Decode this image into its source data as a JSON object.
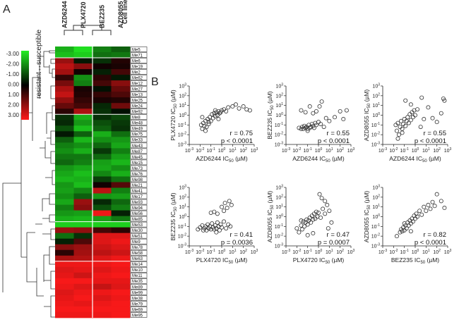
{
  "panel_a": {
    "label": "A",
    "drugs": [
      "AZD6244",
      "PLX4720",
      "BEZ235",
      "AZD8055"
    ],
    "cell_line_header": "Cell line",
    "cell_lines": [
      "Me5",
      "Me71",
      "Me6",
      "Me19",
      "Me2",
      "Me62",
      "Me12",
      "Me27",
      "Me13",
      "Me25",
      "Me24",
      "Me92",
      "Me8",
      "Me48",
      "Me49",
      "Me75",
      "Me33",
      "Me43",
      "Me87",
      "Me45",
      "Me15",
      "Me73",
      "Me76",
      "Me98",
      "Me21",
      "Me41",
      "Me17",
      "Me93",
      "Me94",
      "Me56",
      "Me85",
      "Me53",
      "Me30",
      "Me51",
      "Me9",
      "Me78",
      "Me58",
      "Me63",
      "Me14",
      "Me10",
      "Me11",
      "Me35",
      "Me89",
      "Me99",
      "Me38",
      "Me79",
      "Me69",
      "Me95"
    ],
    "legend_ticks": [
      "-3.00",
      "-2.00",
      "-1.00",
      "0.00",
      "1.00",
      "2.00",
      "3.00"
    ],
    "legend_label_resistant": "resistant",
    "legend_label_susceptible": "susceptible",
    "legend_arrow": "↔"
  },
  "panel_b": {
    "label": "B"
  },
  "chart_data": [
    {
      "type": "heatmap",
      "title": "A",
      "columns": [
        "AZD6244",
        "PLX4720",
        "BEZ235",
        "AZD8055"
      ],
      "rows": [
        "Me5",
        "Me71",
        "Me6",
        "Me19",
        "Me2",
        "Me62",
        "Me12",
        "Me27",
        "Me13",
        "Me25",
        "Me24",
        "Me92",
        "Me8",
        "Me48",
        "Me49",
        "Me75",
        "Me33",
        "Me43",
        "Me87",
        "Me45",
        "Me15",
        "Me73",
        "Me76",
        "Me98",
        "Me21",
        "Me41",
        "Me17",
        "Me93",
        "Me94",
        "Me56",
        "Me85",
        "Me53",
        "Me30",
        "Me51",
        "Me9",
        "Me78",
        "Me58",
        "Me63",
        "Me14",
        "Me10",
        "Me11",
        "Me35",
        "Me89",
        "Me99",
        "Me38",
        "Me79",
        "Me69",
        "Me95"
      ],
      "scale": [
        -3,
        3
      ],
      "colors": {
        "low": "#22ee22",
        "mid": "#000000",
        "high": "#ff1a1a"
      },
      "values": [
        [
          -2.2,
          -2.8,
          -1.6,
          -1.2
        ],
        [
          -2.4,
          -2.6,
          -1.4,
          -1.5
        ],
        [
          1.8,
          -0.3,
          -0.6,
          0.4
        ],
        [
          2.2,
          1.6,
          0.2,
          0.3
        ],
        [
          1.9,
          0.2,
          -0.4,
          0.8
        ],
        [
          0.6,
          -1.8,
          0.5,
          -0.3
        ],
        [
          1.4,
          -1.6,
          0.8,
          1.6
        ],
        [
          2.0,
          0.3,
          -0.2,
          1.2
        ],
        [
          2.3,
          0.4,
          0.6,
          0.9
        ],
        [
          1.7,
          0.6,
          0.3,
          0.4
        ],
        [
          1.2,
          0.8,
          -0.5,
          1.3
        ],
        [
          0.5,
          2.0,
          -0.6,
          -0.2
        ],
        [
          -0.6,
          -2.2,
          -0.6,
          -0.9
        ],
        [
          -0.5,
          -1.9,
          -1.0,
          -0.7
        ],
        [
          -1.0,
          -2.4,
          -1.2,
          -0.6
        ],
        [
          -0.3,
          -1.2,
          -2.2,
          -1.4
        ],
        [
          -1.2,
          -2.3,
          -1.8,
          -1.9
        ],
        [
          -1.6,
          -1.8,
          -1.3,
          -2.1
        ],
        [
          -1.8,
          -2.2,
          -0.7,
          -1.6
        ],
        [
          -1.5,
          -1.5,
          -1.3,
          -2.0
        ],
        [
          -1.3,
          -1.6,
          -2.0,
          -2.3
        ],
        [
          -1.9,
          -2.1,
          -2.1,
          -1.8
        ],
        [
          -2.1,
          -2.4,
          -1.7,
          -2.2
        ],
        [
          -2.3,
          -2.2,
          -0.8,
          -1.4
        ],
        [
          -1.9,
          -2.4,
          0.2,
          1.0
        ],
        [
          -2.0,
          -1.7,
          2.2,
          -1.6
        ],
        [
          -1.8,
          -1.2,
          -1.9,
          -2.0
        ],
        [
          -2.1,
          1.8,
          -0.5,
          -1.3
        ],
        [
          -1.6,
          1.6,
          -1.0,
          -1.6
        ],
        [
          -1.9,
          -2.0,
          2.8,
          -0.4
        ],
        [
          -2.2,
          -2.3,
          -2.0,
          -1.5
        ],
        [
          -2.6,
          -2.6,
          -2.6,
          -2.6
        ],
        [
          1.8,
          1.7,
          0.8,
          0.5
        ],
        [
          -1.4,
          -0.6,
          2.6,
          2.6
        ],
        [
          -0.4,
          0.9,
          2.6,
          2.8
        ],
        [
          1.6,
          1.8,
          2.4,
          2.6
        ],
        [
          0.5,
          1.9,
          2.2,
          2.4
        ],
        [
          2.0,
          2.1,
          2.6,
          2.8
        ],
        [
          2.8,
          2.8,
          2.8,
          2.9
        ],
        [
          2.6,
          2.7,
          2.6,
          2.8
        ],
        [
          2.7,
          2.4,
          2.8,
          2.9
        ],
        [
          2.9,
          2.9,
          2.7,
          2.7
        ],
        [
          2.8,
          2.6,
          2.3,
          2.6
        ],
        [
          2.6,
          2.8,
          2.8,
          2.9
        ],
        [
          2.7,
          2.9,
          2.6,
          2.8
        ],
        [
          2.8,
          2.7,
          2.8,
          2.9
        ],
        [
          2.9,
          2.9,
          2.9,
          2.9
        ],
        [
          2.8,
          2.8,
          2.8,
          2.9
        ]
      ]
    },
    {
      "type": "scatter",
      "xlabel": "AZD6244 IC50 (µM)",
      "ylabel": "PLX4720 IC50 (µM)",
      "r": "r = 0.75",
      "p": "p < 0.0001",
      "x_ticks": [
        "10-3",
        "10-2",
        "10-1",
        "100",
        "101",
        "102",
        "103"
      ],
      "y_ticks": [
        "10-3",
        "10-2",
        "10-1",
        "100",
        "101",
        "102",
        "103"
      ],
      "xlim_log10": [
        -3,
        3
      ],
      "ylim_log10": [
        -3,
        3
      ],
      "points": [
        [
          -1.9,
          -1.0
        ],
        [
          -1.8,
          -1.4
        ],
        [
          -1.7,
          -0.8
        ],
        [
          -1.6,
          -1.1
        ],
        [
          -1.5,
          -0.6
        ],
        [
          -1.4,
          -1.2
        ],
        [
          -1.3,
          -0.4
        ],
        [
          -1.2,
          -0.9
        ],
        [
          -1.1,
          -0.2
        ],
        [
          -1.0,
          -0.6
        ],
        [
          -0.9,
          0.1
        ],
        [
          -0.8,
          -0.3
        ],
        [
          -0.7,
          0.2
        ],
        [
          -0.6,
          -0.1
        ],
        [
          -0.5,
          0.3
        ],
        [
          -0.4,
          0.0
        ],
        [
          -0.3,
          0.4
        ],
        [
          -0.2,
          0.2
        ],
        [
          -0.1,
          0.3
        ],
        [
          0.0,
          0.5
        ],
        [
          0.2,
          0.6
        ],
        [
          0.4,
          0.4
        ],
        [
          0.6,
          0.8
        ],
        [
          1.0,
          0.9
        ],
        [
          1.3,
          1.1
        ],
        [
          1.6,
          0.7
        ],
        [
          2.0,
          0.9
        ],
        [
          2.3,
          0.6
        ],
        [
          2.6,
          0.5
        ],
        [
          -1.5,
          -1.6
        ],
        [
          -1.2,
          -0.7
        ],
        [
          -1.8,
          -0.2
        ],
        [
          -0.6,
          0.5
        ],
        [
          -0.3,
          -0.4
        ]
      ]
    },
    {
      "type": "scatter",
      "xlabel": "AZD6244 IC50 (µM)",
      "ylabel": "BEZ235 IC50 (µM)",
      "r": "r = 0.55",
      "p": "p < 0.0001",
      "x_ticks": [
        "10-3",
        "10-2",
        "10-1",
        "100",
        "101",
        "102",
        "103"
      ],
      "y_ticks": [
        "10-3",
        "10-2",
        "10-1",
        "100",
        "101",
        "102",
        "103"
      ],
      "xlim_log10": [
        -3,
        3
      ],
      "ylim_log10": [
        -3,
        3
      ],
      "points": [
        [
          -1.8,
          -1.3
        ],
        [
          -1.6,
          -1.4
        ],
        [
          -1.5,
          -1.2
        ],
        [
          -1.4,
          -1.4
        ],
        [
          -1.3,
          -1.1
        ],
        [
          -1.2,
          -1.3
        ],
        [
          -1.1,
          -1.2
        ],
        [
          -1.0,
          -1.4
        ],
        [
          -0.9,
          -1.0
        ],
        [
          -0.8,
          -1.3
        ],
        [
          -0.7,
          -1.2
        ],
        [
          -0.6,
          -0.9
        ],
        [
          -0.5,
          -1.1
        ],
        [
          -0.4,
          -1.3
        ],
        [
          -0.3,
          -0.8
        ],
        [
          -0.2,
          -1.0
        ],
        [
          0.0,
          -0.7
        ],
        [
          0.2,
          -0.9
        ],
        [
          0.5,
          -1.2
        ],
        [
          0.7,
          -0.3
        ],
        [
          -1.6,
          0.5
        ],
        [
          -1.2,
          0.3
        ],
        [
          -0.8,
          0.9
        ],
        [
          -0.5,
          0.2
        ],
        [
          0.1,
          0.9
        ],
        [
          0.3,
          1.4
        ],
        [
          1.0,
          -0.6
        ],
        [
          1.5,
          -0.2
        ],
        [
          2.0,
          0.4
        ],
        [
          2.3,
          -0.4
        ],
        [
          2.6,
          0.5
        ],
        [
          -1.0,
          -1.6
        ],
        [
          -0.2,
          0.4
        ]
      ]
    },
    {
      "type": "scatter",
      "xlabel": "AZD6244 IC50 (µM)",
      "ylabel": "AZD8055 IC50 (µM)",
      "r": "r = 0.55",
      "p": "p < 0.0001",
      "x_ticks": [
        "10-3",
        "10-2",
        "10-1",
        "100",
        "101",
        "102",
        "103"
      ],
      "y_ticks": [
        "10-3",
        "10-2",
        "10-1",
        "100",
        "101",
        "102",
        "103"
      ],
      "xlim_log10": [
        -3,
        3
      ],
      "ylim_log10": [
        -3,
        3
      ],
      "points": [
        [
          -1.8,
          -1.0
        ],
        [
          -1.7,
          -1.6
        ],
        [
          -1.6,
          -0.8
        ],
        [
          -1.5,
          -2.0
        ],
        [
          -1.4,
          -1.2
        ],
        [
          -1.3,
          -0.6
        ],
        [
          -1.2,
          -1.4
        ],
        [
          -1.1,
          -0.9
        ],
        [
          -1.0,
          -0.4
        ],
        [
          -0.9,
          -1.1
        ],
        [
          -0.8,
          -0.6
        ],
        [
          -0.7,
          -0.2
        ],
        [
          -0.6,
          -0.8
        ],
        [
          -0.5,
          0.1
        ],
        [
          -0.4,
          -0.5
        ],
        [
          -0.3,
          0.3
        ],
        [
          -0.2,
          -0.2
        ],
        [
          -0.1,
          0.5
        ],
        [
          0.0,
          0.0
        ],
        [
          0.2,
          0.6
        ],
        [
          0.5,
          -1.2
        ],
        [
          0.8,
          -0.4
        ],
        [
          1.2,
          0.8
        ],
        [
          1.6,
          -0.3
        ],
        [
          2.0,
          -0.7
        ],
        [
          2.4,
          0.2
        ],
        [
          2.6,
          1.7
        ],
        [
          2.7,
          1.5
        ],
        [
          -0.4,
          1.1
        ],
        [
          -0.9,
          1.5
        ],
        [
          0.6,
          1.8
        ],
        [
          -1.6,
          -2.4
        ],
        [
          -1.2,
          -1.8
        ]
      ]
    },
    {
      "type": "scatter",
      "xlabel": "PLX4720 IC50 (µM)",
      "ylabel": "BEZ235 IC50 (µM)",
      "r": "r = 0.41",
      "p": "p = 0.0036",
      "x_ticks": [
        "10-3",
        "10-2",
        "10-1",
        "100",
        "101",
        "102",
        "103"
      ],
      "y_ticks": [
        "10-3",
        "10-2",
        "10-1",
        "100",
        "101",
        "102",
        "103"
      ],
      "xlim_log10": [
        -3,
        3
      ],
      "ylim_log10": [
        -3,
        3
      ],
      "points": [
        [
          -2.2,
          -1.3
        ],
        [
          -2.0,
          -1.1
        ],
        [
          -1.8,
          -0.9
        ],
        [
          -1.7,
          -1.4
        ],
        [
          -1.6,
          -1.2
        ],
        [
          -1.5,
          -1.0
        ],
        [
          -1.4,
          -1.4
        ],
        [
          -1.3,
          -0.8
        ],
        [
          -1.2,
          -1.2
        ],
        [
          -1.1,
          -1.0
        ],
        [
          -1.0,
          -1.3
        ],
        [
          -0.9,
          -0.7
        ],
        [
          -0.8,
          -1.1
        ],
        [
          -0.7,
          -1.3
        ],
        [
          -0.6,
          -0.9
        ],
        [
          -0.5,
          -1.2
        ],
        [
          -0.4,
          -0.6
        ],
        [
          -0.3,
          -1.0
        ],
        [
          -0.2,
          -1.4
        ],
        [
          -0.1,
          -0.8
        ],
        [
          0.0,
          -1.1
        ],
        [
          0.2,
          -0.5
        ],
        [
          0.4,
          -1.2
        ],
        [
          0.6,
          -0.8
        ],
        [
          0.8,
          -1.0
        ],
        [
          -1.0,
          0.4
        ],
        [
          -0.7,
          0.5
        ],
        [
          -0.4,
          0.3
        ],
        [
          0.0,
          1.0
        ],
        [
          0.2,
          0.6
        ],
        [
          0.3,
          1.4
        ],
        [
          0.5,
          0.9
        ],
        [
          0.7,
          1.6
        ],
        [
          0.9,
          1.2
        ],
        [
          -0.5,
          -1.6
        ]
      ]
    },
    {
      "type": "scatter",
      "xlabel": "PLX4720 IC50 (µM)",
      "ylabel": "AZD8055 IC50 (µM)",
      "r": "r = 0.47",
      "p": "p = 0.0007",
      "x_ticks": [
        "10-3",
        "10-2",
        "10-1",
        "100",
        "101",
        "102",
        "103"
      ],
      "y_ticks": [
        "10-3",
        "10-2",
        "10-1",
        "100",
        "101",
        "102",
        "103"
      ],
      "xlim_log10": [
        -3,
        3
      ],
      "ylim_log10": [
        -3,
        3
      ],
      "points": [
        [
          -2.0,
          -1.2
        ],
        [
          -1.8,
          -1.6
        ],
        [
          -1.6,
          -0.9
        ],
        [
          -1.5,
          -1.3
        ],
        [
          -1.4,
          -0.5
        ],
        [
          -1.3,
          -1.0
        ],
        [
          -1.2,
          -0.6
        ],
        [
          -1.1,
          -0.3
        ],
        [
          -1.0,
          -0.8
        ],
        [
          -0.9,
          -0.4
        ],
        [
          -0.8,
          -0.1
        ],
        [
          -0.7,
          -0.6
        ],
        [
          -0.6,
          0.1
        ],
        [
          -0.5,
          -0.3
        ],
        [
          -0.4,
          0.3
        ],
        [
          -0.3,
          -0.2
        ],
        [
          -0.2,
          0.5
        ],
        [
          -0.1,
          0.0
        ],
        [
          0.0,
          0.4
        ],
        [
          0.2,
          -0.1
        ],
        [
          0.4,
          0.8
        ],
        [
          0.6,
          0.3
        ],
        [
          0.8,
          1.2
        ],
        [
          1.0,
          0.6
        ],
        [
          0.3,
          1.9
        ],
        [
          0.1,
          2.3
        ],
        [
          0.6,
          1.6
        ],
        [
          -1.0,
          -1.9
        ],
        [
          -0.5,
          -1.7
        ],
        [
          1.2,
          -0.6
        ],
        [
          0.9,
          -1.2
        ],
        [
          -1.6,
          -0.4
        ]
      ]
    },
    {
      "type": "scatter",
      "xlabel": "BEZ235 IC50 (µM)",
      "ylabel": "AZD8055 IC50 (µM)",
      "r": "r = 0.82",
      "p": "p < 0.0001",
      "x_ticks": [
        "10-3",
        "10-2",
        "10-1",
        "100",
        "101",
        "102",
        "103"
      ],
      "y_ticks": [
        "10-3",
        "10-2",
        "10-1",
        "100",
        "101",
        "102",
        "103"
      ],
      "xlim_log10": [
        -3,
        3
      ],
      "ylim_log10": [
        -3,
        3
      ],
      "points": [
        [
          -1.4,
          -1.6
        ],
        [
          -1.3,
          -1.3
        ],
        [
          -1.2,
          -1.5
        ],
        [
          -1.1,
          -1.1
        ],
        [
          -1.0,
          -1.4
        ],
        [
          -0.9,
          -0.9
        ],
        [
          -1.0,
          -0.7
        ],
        [
          -0.8,
          -1.2
        ],
        [
          -0.7,
          -0.6
        ],
        [
          -0.6,
          -0.9
        ],
        [
          -0.5,
          -0.4
        ],
        [
          -0.4,
          -0.7
        ],
        [
          -0.3,
          -0.2
        ],
        [
          -0.2,
          -0.5
        ],
        [
          -0.1,
          0.1
        ],
        [
          0.0,
          -0.2
        ],
        [
          0.1,
          0.3
        ],
        [
          0.2,
          0.0
        ],
        [
          0.4,
          0.6
        ],
        [
          0.6,
          0.2
        ],
        [
          0.8,
          1.0
        ],
        [
          1.0,
          0.6
        ],
        [
          1.2,
          1.2
        ],
        [
          1.4,
          0.8
        ],
        [
          1.6,
          1.5
        ],
        [
          1.8,
          1.1
        ],
        [
          2.0,
          2.3
        ],
        [
          2.4,
          1.6
        ],
        [
          2.7,
          0.9
        ],
        [
          -1.7,
          -2.0
        ],
        [
          -0.4,
          -1.5
        ]
      ]
    }
  ]
}
